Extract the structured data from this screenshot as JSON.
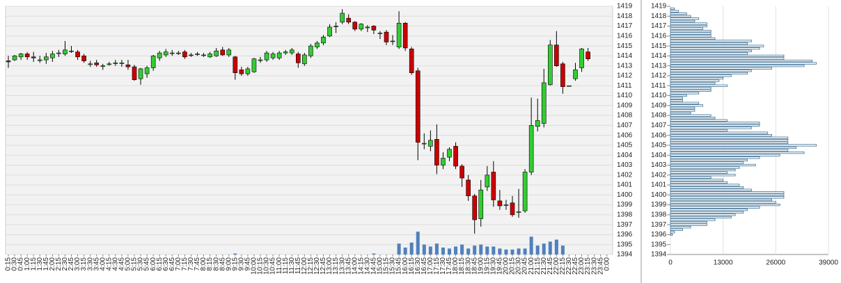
{
  "chart_data": [
    {
      "type": "candlestick",
      "categories": [
        "0:15",
        "0:30",
        "0:45",
        "1:00",
        "1:15",
        "1:30",
        "1:45",
        "2:00",
        "2:15",
        "2:30",
        "2:45",
        "3:00",
        "3:15",
        "3:30",
        "3:45",
        "4:00",
        "4:15",
        "4:30",
        "4:45",
        "5:00",
        "5:15",
        "5:30",
        "5:45",
        "6:00",
        "6:15",
        "6:30",
        "6:45",
        "7:00",
        "7:15",
        "7:30",
        "7:45",
        "8:00",
        "8:15",
        "8:30",
        "8:45",
        "9:00",
        "9:15",
        "9:30",
        "9:45",
        "10:00",
        "10:15",
        "10:30",
        "10:45",
        "11:00",
        "11:15",
        "11:30",
        "11:45",
        "12:00",
        "12:15",
        "12:30",
        "12:45",
        "13:00",
        "13:15",
        "13:30",
        "13:45",
        "14:00",
        "14:15",
        "14:30",
        "14:45",
        "15:00",
        "15:15",
        "15:30",
        "15:45",
        "16:00",
        "16:15",
        "16:30",
        "16:45",
        "17:00",
        "17:15",
        "17:30",
        "17:45",
        "18:00",
        "18:15",
        "18:30",
        "18:45",
        "19:00",
        "19:15",
        "19:30",
        "19:45",
        "20:00",
        "20:15",
        "20:30",
        "20:45",
        "21:00",
        "21:15",
        "21:30",
        "21:45",
        "22:00",
        "22:15",
        "22:30",
        "22:45",
        "23:00",
        "23:15",
        "23:30",
        "23:45",
        "0:00"
      ],
      "open": [
        1413.5,
        1413.6,
        1413.9,
        1414.2,
        1413.9,
        1413.6,
        1413.6,
        1413.8,
        1414.3,
        1414.2,
        1414.5,
        1414.4,
        1414,
        1413.2,
        1413.3,
        1413,
        1413.2,
        1413.3,
        1413.3,
        1413.1,
        1412.9,
        1411.7,
        1412.2,
        1412.8,
        1413.8,
        1414.1,
        1414.3,
        1414.3,
        1414.4,
        1414.1,
        1414.2,
        1414.1,
        1413.9,
        1414,
        1414.6,
        1414.1,
        1413.9,
        1412.6,
        1412.2,
        1412.4,
        1413.6,
        1413.6,
        1413.8,
        1413.8,
        1414.3,
        1414.3,
        1414.2,
        1413.2,
        1414,
        1414.9,
        1415.3,
        1416,
        1417,
        1417.4,
        1417.8,
        1417.4,
        1416.7,
        1416.9,
        1417,
        1416.3,
        1416.4,
        1415.5,
        1414.9,
        1417.3,
        1414.7,
        1412.5,
        1405.2,
        1404.9,
        1405.6,
        1403,
        1403.8,
        1404.9,
        1402.9,
        1401.5,
        1399.9,
        1397.6,
        1400.8,
        1402.3,
        1399.4,
        1399,
        1399.2,
        1398.3,
        1398.4,
        1402.3,
        1406.9,
        1407.2,
        1411.1,
        1415.1,
        1413.2,
        1411,
        1411.7,
        1412.8,
        1414.4,
        null,
        null,
        null
      ],
      "high": [
        1414,
        1414.1,
        1414.3,
        1414.4,
        1414.4,
        1414,
        1414.3,
        1414.5,
        1414.6,
        1415.5,
        1415,
        1414.6,
        1414.2,
        1413.5,
        1413.6,
        1413.2,
        1413.4,
        1413.6,
        1413.6,
        1413.6,
        1413.1,
        1412.8,
        1413,
        1414.1,
        1414.5,
        1414.7,
        1414.6,
        1414.5,
        1414.6,
        1414.3,
        1414.4,
        1414.3,
        1414.4,
        1414.8,
        1414.9,
        1414.8,
        1414,
        1412.9,
        1412.9,
        1413.8,
        1413.9,
        1414.5,
        1414.4,
        1414.5,
        1414.6,
        1414.8,
        1414.4,
        1414.3,
        1415.2,
        1415.5,
        1416.1,
        1417.2,
        1417.4,
        1418.7,
        1418.2,
        1417.5,
        1417.3,
        1417.1,
        1417.1,
        1416.5,
        1416.6,
        1416.1,
        1418.5,
        1417.4,
        1414.9,
        1412.8,
        1406.2,
        1406.5,
        1407.1,
        1404.3,
        1404.8,
        1405.3,
        1403.1,
        1402,
        1400.1,
        1401.5,
        1402.9,
        1403.4,
        1400.5,
        1399.5,
        1399.9,
        1400.6,
        1402.6,
        1409.8,
        1409.7,
        1412.7,
        1415.6,
        1416.5,
        1413.4,
        1411,
        1413.3,
        1414.8,
        1414.8,
        null,
        null,
        null
      ],
      "low": [
        1412.8,
        1413.5,
        1413.6,
        1413.6,
        1413.4,
        1413.3,
        1413.2,
        1413.4,
        1413.9,
        1414,
        1414.3,
        1413.6,
        1413.3,
        1412.9,
        1412.9,
        1412.6,
        1413,
        1413,
        1412.9,
        1412.6,
        1411.5,
        1411.1,
        1411.8,
        1412.5,
        1413.5,
        1413.9,
        1414,
        1414.1,
        1413.7,
        1413.9,
        1414,
        1413.9,
        1413.8,
        1413.9,
        1414,
        1413.9,
        1411.6,
        1412,
        1412,
        1412.3,
        1413.3,
        1413.4,
        1413.6,
        1413.6,
        1414.1,
        1414.1,
        1412.8,
        1413,
        1413.8,
        1414.7,
        1415.1,
        1415.9,
        1416.3,
        1417.2,
        1417.2,
        1416.5,
        1416.5,
        1416.4,
        1416.2,
        1415.7,
        1415.1,
        1415.1,
        1414.7,
        1414.5,
        1412.1,
        1403.5,
        1404.6,
        1404.4,
        1402.1,
        1402.6,
        1403.4,
        1402.6,
        1400.8,
        1399.4,
        1396.1,
        1396.8,
        1400.4,
        1398.8,
        1398.5,
        1398.5,
        1397.8,
        1397.7,
        1398.2,
        1402,
        1406.4,
        1406.8,
        1411,
        1412.9,
        1410.2,
        1411,
        1411.5,
        1412.4,
        1413.5,
        null,
        null,
        null
      ],
      "close": [
        1413.4,
        1414,
        1414.2,
        1413.9,
        1413.8,
        1413.6,
        1413.9,
        1414.2,
        1414.3,
        1414.6,
        1414.5,
        1413.9,
        1413.5,
        1413.2,
        1413.1,
        1413,
        1413.2,
        1413.3,
        1413.3,
        1412.9,
        1411.6,
        1412.7,
        1412.8,
        1414,
        1414.3,
        1414.4,
        1414.3,
        1414.3,
        1413.9,
        1414.1,
        1414.2,
        1414.1,
        1414.2,
        1414.5,
        1414.1,
        1414.6,
        1412.3,
        1412.2,
        1412.7,
        1413.7,
        1413.6,
        1414.3,
        1414.2,
        1414.3,
        1414.4,
        1414.6,
        1413.3,
        1414.1,
        1415,
        1415.3,
        1415.9,
        1416.9,
        1417,
        1418.3,
        1417.4,
        1416.7,
        1417.2,
        1416.9,
        1416.6,
        1416.3,
        1415.4,
        1415.5,
        1417.3,
        1414.8,
        1412.3,
        1405.3,
        1405.2,
        1405.5,
        1403,
        1403.7,
        1404.6,
        1402.9,
        1401.7,
        1399.9,
        1397.5,
        1400.5,
        1402,
        1399.5,
        1398.9,
        1399,
        1398,
        1398.3,
        1402.3,
        1407,
        1407.5,
        1411.3,
        1415.1,
        1413,
        1410.9,
        1411,
        1412.6,
        1414.7,
        1413.7,
        null,
        null,
        null
      ],
      "volume": [
        0,
        0,
        0,
        0,
        0,
        0,
        0,
        0,
        0,
        0,
        0,
        0,
        0,
        0,
        0,
        0,
        0,
        0,
        0,
        0,
        0,
        0,
        0,
        0,
        0,
        0,
        0,
        0,
        0,
        0,
        0,
        0,
        0,
        0,
        0,
        0,
        0.1,
        0,
        0,
        0,
        0,
        0,
        0,
        0,
        0,
        0,
        0,
        0,
        0,
        0,
        0,
        0,
        0,
        0,
        0,
        0,
        0,
        0,
        0.1,
        0,
        0,
        0,
        1.1,
        0.7,
        1.2,
        2.3,
        1.0,
        0.8,
        1.1,
        0.7,
        0.6,
        0.8,
        1.0,
        0.6,
        0.9,
        1.0,
        0.8,
        0.8,
        0.6,
        0.5,
        0.5,
        0.6,
        0.6,
        1.8,
        0.9,
        1.1,
        1.3,
        1.5,
        0.9,
        0,
        0,
        0,
        0,
        0,
        0,
        0
      ],
      "up_color": "#33cc33",
      "down_color": "#cc0000",
      "volume_color": "#4f81bd",
      "ylim": [
        1394,
        1419
      ],
      "yticks": [
        1394,
        1395,
        1396,
        1397,
        1398,
        1399,
        1400,
        1401,
        1402,
        1403,
        1404,
        1405,
        1406,
        1407,
        1408,
        1409,
        1410,
        1411,
        1412,
        1413,
        1414,
        1415,
        1416,
        1417,
        1418,
        1419
      ],
      "grid": true
    },
    {
      "type": "hbar",
      "levels": [
        1418.75,
        1418.5,
        1418.25,
        1418,
        1417.75,
        1417.5,
        1417.25,
        1417,
        1416.75,
        1416.5,
        1416.25,
        1416,
        1415.75,
        1415.5,
        1415.25,
        1415,
        1414.75,
        1414.5,
        1414.25,
        1414,
        1413.75,
        1413.5,
        1413.25,
        1413,
        1412.75,
        1412.5,
        1412.25,
        1412,
        1411.75,
        1411.5,
        1411.25,
        1411,
        1410.75,
        1410.5,
        1410.25,
        1410,
        1409.75,
        1409.5,
        1409.25,
        1409,
        1408.75,
        1408.5,
        1408.25,
        1408,
        1407.75,
        1407.5,
        1407.25,
        1407,
        1406.75,
        1406.5,
        1406.25,
        1406,
        1405.75,
        1405.5,
        1405.25,
        1405,
        1404.75,
        1404.5,
        1404.25,
        1404,
        1403.75,
        1403.5,
        1403.25,
        1403,
        1402.75,
        1402.5,
        1402.25,
        1402,
        1401.75,
        1401.5,
        1401.25,
        1401,
        1400.75,
        1400.5,
        1400.25,
        1400,
        1399.75,
        1399.5,
        1399.25,
        1399,
        1398.75,
        1398.5,
        1398.25,
        1398,
        1397.75,
        1397.5,
        1397.25,
        1397,
        1396.75,
        1396.5,
        1396.25,
        1396
      ],
      "values": [
        1000,
        2000,
        4000,
        5000,
        7000,
        6000,
        9000,
        9000,
        8000,
        10000,
        10000,
        10000,
        11000,
        20000,
        19000,
        23000,
        22000,
        20000,
        19000,
        28000,
        28000,
        35000,
        36000,
        33000,
        25000,
        20000,
        19000,
        15000,
        13000,
        12000,
        11000,
        14000,
        10000,
        10000,
        7000,
        4000,
        3000,
        3000,
        7000,
        8000,
        6000,
        6000,
        5000,
        10000,
        11000,
        14000,
        22000,
        22000,
        20000,
        14000,
        24000,
        25000,
        29000,
        29000,
        29000,
        36000,
        31000,
        29000,
        33000,
        27000,
        22000,
        19000,
        18000,
        21000,
        17000,
        16000,
        14000,
        16000,
        10000,
        13000,
        14000,
        17000,
        18000,
        20000,
        28000,
        28000,
        28000,
        25000,
        26000,
        27000,
        22000,
        19000,
        18000,
        16000,
        15000,
        11000,
        9000,
        9000,
        5000,
        3000,
        1000,
        500
      ],
      "color": "#3a6d92",
      "xlim": [
        0,
        39000
      ],
      "xticks": [
        0,
        13000,
        26000,
        39000
      ],
      "ylim": [
        1394,
        1419
      ],
      "yticks": [
        1394,
        1395,
        1396,
        1397,
        1398,
        1399,
        1400,
        1401,
        1402,
        1403,
        1404,
        1405,
        1406,
        1407,
        1408,
        1409,
        1410,
        1411,
        1412,
        1413,
        1414,
        1415,
        1416,
        1417,
        1418,
        1419
      ],
      "grid": true
    }
  ]
}
